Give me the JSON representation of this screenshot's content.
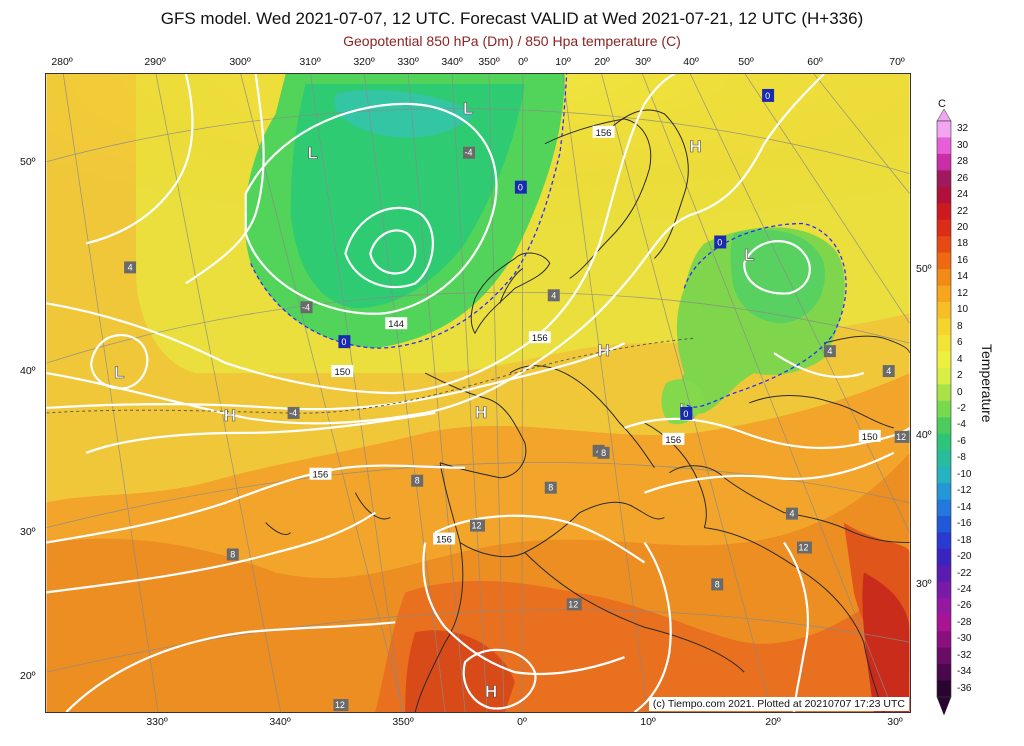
{
  "title": "GFS model. Wed 2021-07-07, 12 UTC. Forecast VALID at Wed 2021-07-21, 12 UTC (H+336)",
  "subtitle": "Geopotential 850 hPa (Dm) / 850 Hpa temperature (C)",
  "credit": "(c) Tiempo.com 2021. Plotted at 20210707 17:23 UTC",
  "top_longitudes": [
    "280º",
    "290º",
    "300º",
    "310º",
    "320º",
    "330º",
    "340º",
    "350º",
    "0º",
    "10º",
    "20º",
    "30º",
    "40º",
    "50º",
    "60º",
    "70º"
  ],
  "bottom_longitudes": [
    "330º",
    "340º",
    "350º",
    "0º",
    "10º",
    "20º",
    "30º"
  ],
  "left_latitudes": [
    "50º",
    "40º",
    "30º",
    "20º"
  ],
  "right_latitudes": [
    "50º",
    "40º",
    "30º"
  ],
  "pressure_centers": [
    "L",
    "L",
    "L",
    "H",
    "H",
    "H",
    "H",
    "L",
    "L",
    "H"
  ],
  "isohypse_labels": [
    "144",
    "150",
    "156",
    "156",
    "156",
    "156",
    "150",
    "156"
  ],
  "temperature_labels": [
    "-4",
    "-4",
    "-4",
    "0",
    "0",
    "0",
    "0",
    "0",
    "4",
    "4",
    "4",
    "4",
    "4",
    "4",
    "8",
    "8",
    "8",
    "8",
    "8",
    "12",
    "12",
    "12",
    "12",
    "12"
  ],
  "colorbar": {
    "unit": "C",
    "title": "Temperature",
    "ticks": [
      "32",
      "30",
      "28",
      "26",
      "24",
      "22",
      "20",
      "18",
      "16",
      "14",
      "12",
      "10",
      "8",
      "6",
      "4",
      "2",
      "0",
      "-2",
      "-4",
      "-6",
      "-8",
      "-10",
      "-12",
      "-14",
      "-16",
      "-18",
      "-20",
      "-22",
      "-24",
      "-26",
      "-28",
      "-30",
      "-32",
      "-34",
      "-36"
    ],
    "colors": [
      "#f2a6f2",
      "#e75fd8",
      "#c92ea6",
      "#a0185e",
      "#b0103a",
      "#cc1a20",
      "#dc2d18",
      "#e64a12",
      "#ee6a12",
      "#f28a18",
      "#f5a51e",
      "#f7be26",
      "#f5d42e",
      "#f2e436",
      "#eef040",
      "#d8ee44",
      "#a8e248",
      "#78d84e",
      "#4ccc5c",
      "#2ec47a",
      "#28bc9c",
      "#26b2be",
      "#2596d6",
      "#2278dc",
      "#1f58d8",
      "#2a3ad0",
      "#3a24c0",
      "#5a1cb0",
      "#7a1aa8",
      "#9618a0",
      "#a81494",
      "#8a1080",
      "#6a0c66",
      "#4a084c",
      "#2a0430"
    ]
  }
}
